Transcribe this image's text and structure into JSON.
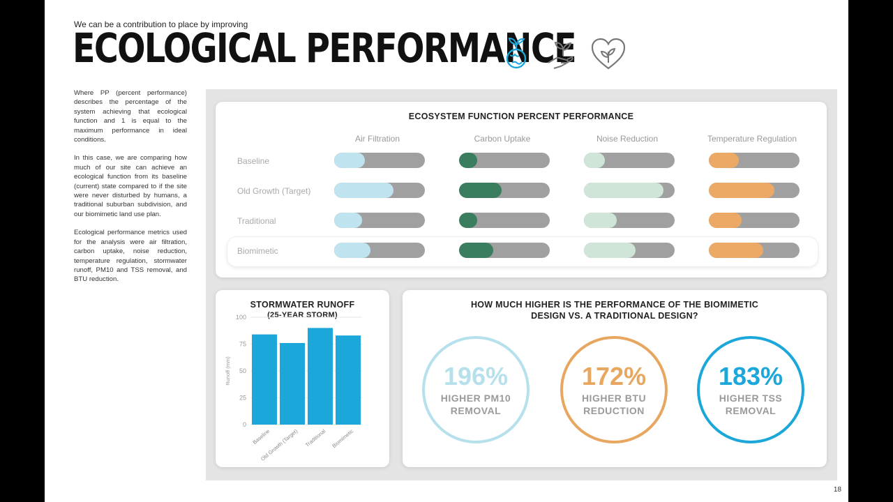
{
  "header": {
    "subtitle": "We can be a contribution to place by improving",
    "title": "ECOLOGICAL PERFORMANCE"
  },
  "icons": [
    "earth-sprout-icon",
    "hand-sprout-icon",
    "heart-leaf-icon"
  ],
  "description": [
    "Where PP (percent performance) describes the percentage of the system achieving that ecological function and 1 is equal to the maximum performance in ideal conditions.",
    "In this case, we are comparing how much of our site can achieve an ecological function from its baseline (current) state compared to if the site were never disturbed by humans, a traditional suburban subdivision, and our biomimetic land use plan.",
    "Ecological performance metrics used for the analysis were air filtration, carbon uptake, noise reduction, temperature regulation, stormwater runoff, PM10 and TSS removal, and BTU reduction."
  ],
  "ecosystem": {
    "title": "ECOSYSTEM FUNCTION PERCENT PERFORMANCE",
    "columns": [
      "Air Filtration",
      "Carbon Uptake",
      "Noise Reduction",
      "Temperature Regulation"
    ],
    "rows": [
      "Baseline",
      "Old Growth (Target)",
      "Traditional",
      "Biomimetic"
    ],
    "colors": [
      "#bfe4f0",
      "#3a7d5f",
      "#cfe5d8",
      "#eca865"
    ],
    "track_color": "#a0a0a0",
    "values": [
      [
        0.34,
        0.2,
        0.23,
        0.33
      ],
      [
        0.65,
        0.47,
        0.88,
        0.72
      ],
      [
        0.31,
        0.2,
        0.36,
        0.36
      ],
      [
        0.4,
        0.38,
        0.57,
        0.6
      ]
    ]
  },
  "stormwater": {
    "title_line1": "STORMWATER RUNOFF",
    "title_line2": "(25-YEAR STORM)"
  },
  "chart_data": {
    "type": "bar",
    "title": "STORMWATER RUNOFF (25-YEAR STORM)",
    "xlabel": "",
    "ylabel": "Runoff (mm)",
    "categories": [
      "Baseline",
      "Old Growth (Target)",
      "Traditional",
      "Biomimetic"
    ],
    "values": [
      84,
      76,
      90,
      83
    ],
    "ylim": [
      0,
      100
    ],
    "yticks": [
      0,
      25,
      50,
      75,
      100
    ],
    "color": "#1ba7d9"
  },
  "comparison": {
    "title_line1": "HOW MUCH HIGHER IS THE PERFORMANCE OF THE BIOMIMETIC",
    "title_line2": "DESIGN VS. A TRADITIONAL DESIGN?",
    "items": [
      {
        "value": "196%",
        "label": "HIGHER PM10 REMOVAL",
        "color": "#b6e0ec"
      },
      {
        "value": "172%",
        "label": "HIGHER BTU REDUCTION",
        "color": "#e8a760"
      },
      {
        "value": "183%",
        "label": "HIGHER TSS REMOVAL",
        "color": "#1ba7d9"
      }
    ]
  },
  "page_number": "18"
}
